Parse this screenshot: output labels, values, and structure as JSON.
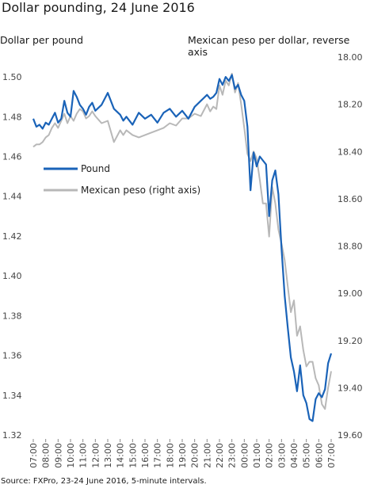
{
  "title": "Dollar pounding, 24 June 2016",
  "source": "Source: FXPro, 23-24 June 2016, 5-minute intervals.",
  "chart_data": {
    "type": "line",
    "left_axis_label": "Dollar per pound",
    "right_axis_label": "Mexican peso  per dollar, reverse axis",
    "left_ylim": [
      1.32,
      1.51
    ],
    "right_ylim": [
      19.6,
      18.0
    ],
    "right_reversed": true,
    "left_ticks": [
      "1.32",
      "1.34",
      "1.36",
      "1.38",
      "1.40",
      "1.42",
      "1.44",
      "1.46",
      "1.48",
      "1.50"
    ],
    "right_ticks": [
      "19.60",
      "19.40",
      "19.20",
      "19.00",
      "18.80",
      "18.60",
      "18.40",
      "18.20",
      "18.00"
    ],
    "x_ticks": [
      "07:00",
      "08:00",
      "09:00",
      "10:00",
      "11:00",
      "12:00",
      "13:00",
      "14:00",
      "15:00",
      "16:00",
      "17:00",
      "18:00",
      "19:00",
      "20:00",
      "21:00",
      "22:00",
      "23:00",
      "00:00",
      "01:00",
      "02:00",
      "03:00",
      "04:00",
      "05:00",
      "06:00",
      "07:00"
    ],
    "grid": false,
    "legend_position": "left",
    "series": [
      {
        "name": "Pound",
        "axis": "left",
        "color": "#1a63b8",
        "x": [
          0,
          0.25,
          0.5,
          0.75,
          1,
          1.25,
          1.5,
          1.75,
          2,
          2.25,
          2.5,
          2.75,
          3,
          3.25,
          3.5,
          3.75,
          4,
          4.25,
          4.5,
          4.75,
          5,
          5.5,
          6,
          6.5,
          7,
          7.25,
          7.5,
          8,
          8.5,
          9,
          9.5,
          10,
          10.5,
          11,
          11.5,
          12,
          12.5,
          13,
          13.5,
          14,
          14.25,
          14.5,
          14.75,
          15,
          15.25,
          15.5,
          15.75,
          16,
          16.25,
          16.5,
          16.75,
          17,
          17.25,
          17.5,
          17.75,
          18,
          18.25,
          18.5,
          18.75,
          19,
          19.25,
          19.5,
          19.75,
          20,
          20.25,
          20.5,
          20.75,
          21,
          21.25,
          21.5,
          21.75,
          22,
          22.25,
          22.5,
          22.75,
          23,
          23.25,
          23.5,
          23.75,
          24
        ],
        "values": [
          1.479,
          1.475,
          1.476,
          1.474,
          1.477,
          1.476,
          1.479,
          1.482,
          1.477,
          1.479,
          1.488,
          1.482,
          1.48,
          1.493,
          1.49,
          1.486,
          1.484,
          1.481,
          1.485,
          1.487,
          1.483,
          1.486,
          1.492,
          1.484,
          1.481,
          1.478,
          1.48,
          1.476,
          1.482,
          1.479,
          1.481,
          1.477,
          1.482,
          1.484,
          1.48,
          1.483,
          1.479,
          1.485,
          1.488,
          1.491,
          1.489,
          1.49,
          1.492,
          1.499,
          1.496,
          1.5,
          1.498,
          1.501,
          1.494,
          1.496,
          1.491,
          1.488,
          1.475,
          1.443,
          1.462,
          1.455,
          1.46,
          1.458,
          1.456,
          1.43,
          1.448,
          1.453,
          1.441,
          1.414,
          1.39,
          1.374,
          1.359,
          1.352,
          1.342,
          1.355,
          1.34,
          1.336,
          1.328,
          1.327,
          1.338,
          1.341,
          1.339,
          1.343,
          1.356,
          1.361
        ]
      },
      {
        "name": "Mexican peso (right axis)",
        "axis": "right",
        "color": "#b8b8b8",
        "x": [
          0,
          0.25,
          0.5,
          0.75,
          1,
          1.25,
          1.5,
          1.75,
          2,
          2.25,
          2.5,
          2.75,
          3,
          3.25,
          3.5,
          3.75,
          4,
          4.25,
          4.5,
          4.75,
          5,
          5.5,
          6,
          6.5,
          7,
          7.25,
          7.5,
          8,
          8.5,
          9,
          9.5,
          10,
          10.5,
          11,
          11.5,
          12,
          12.5,
          13,
          13.5,
          14,
          14.25,
          14.5,
          14.75,
          15,
          15.25,
          15.5,
          15.75,
          16,
          16.25,
          16.5,
          16.75,
          17,
          17.25,
          17.5,
          17.75,
          18,
          18.25,
          18.5,
          18.75,
          19,
          19.25,
          19.5,
          19.75,
          20,
          20.25,
          20.5,
          20.75,
          21,
          21.25,
          21.5,
          21.75,
          22,
          22.25,
          22.5,
          22.75,
          23,
          23.25,
          23.5,
          23.75,
          24
        ],
        "values": [
          18.38,
          18.37,
          18.37,
          18.36,
          18.34,
          18.33,
          18.3,
          18.28,
          18.3,
          18.27,
          18.24,
          18.28,
          18.25,
          18.27,
          18.24,
          18.22,
          18.23,
          18.26,
          18.25,
          18.23,
          18.25,
          18.28,
          18.27,
          18.36,
          18.31,
          18.33,
          18.31,
          18.33,
          18.34,
          18.33,
          18.32,
          18.31,
          18.3,
          18.28,
          18.29,
          18.26,
          18.26,
          18.24,
          18.25,
          18.2,
          18.23,
          18.21,
          18.22,
          18.12,
          18.16,
          18.1,
          18.12,
          18.07,
          18.15,
          18.11,
          18.2,
          18.3,
          18.41,
          18.44,
          18.4,
          18.43,
          18.52,
          18.62,
          18.62,
          18.76,
          18.55,
          18.62,
          18.73,
          18.79,
          18.86,
          18.97,
          19.08,
          19.03,
          19.18,
          19.14,
          19.24,
          19.31,
          19.29,
          19.29,
          19.36,
          19.39,
          19.47,
          19.49,
          19.4,
          19.33
        ]
      }
    ]
  }
}
